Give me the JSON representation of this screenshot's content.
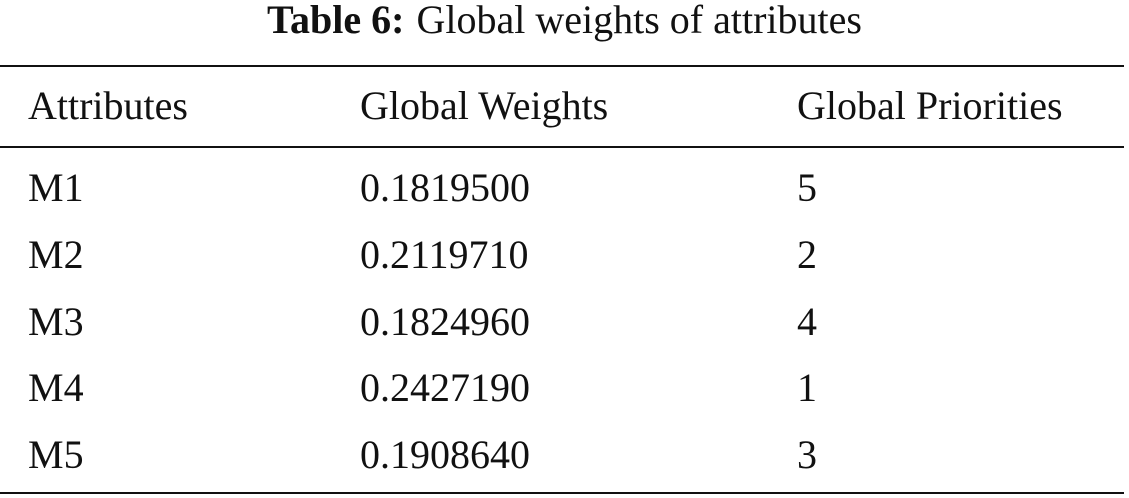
{
  "table": {
    "label": "Table 6:",
    "caption": "Global weights of attributes",
    "columns": [
      "Attributes",
      "Global Weights",
      "Global Priorities"
    ],
    "rows": [
      [
        "M1",
        "0.1819500",
        5
      ],
      [
        "M2",
        "0.2119710",
        2
      ],
      [
        "M3",
        "0.1824960",
        4
      ],
      [
        "M4",
        "0.2427190",
        1
      ],
      [
        "M5",
        "0.1908640",
        3
      ]
    ]
  }
}
